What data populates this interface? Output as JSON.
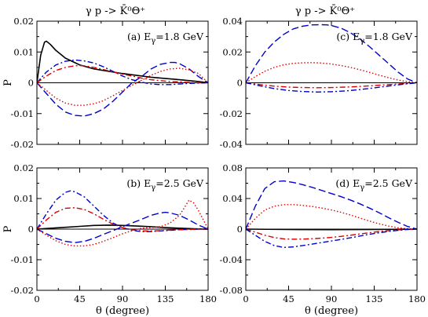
{
  "figure": {
    "reaction_left": "γ p -> K̄⁰Θ⁺",
    "reaction_right": "γ p -> K̄⁰Θ⁺"
  },
  "colors": {
    "black": "#000000",
    "blue": "#0000cc",
    "red": "#dd0000"
  },
  "chart_data": [
    {
      "type": "line",
      "panel": "a",
      "annotation": "(a) Eγ=1.8 GeV",
      "xlabel": "",
      "ylabel": "P",
      "xlim": [
        0,
        180
      ],
      "ylim": [
        -0.02,
        0.02
      ],
      "xticks": [
        0,
        45,
        90,
        135,
        180
      ],
      "xtick_labels": [
        "",
        "",
        "",
        "",
        ""
      ],
      "yticks": [
        -0.02,
        -0.01,
        0,
        0.01,
        0.02
      ],
      "ytick_labels": [
        "-0.02",
        "-0.01",
        "0",
        "0.01",
        "0.02"
      ],
      "grid": false,
      "legend": "none",
      "zero_line": true,
      "series": [
        {
          "style": "solid",
          "color": "black",
          "x": [
            0,
            4,
            8,
            10,
            14,
            20,
            30,
            45,
            60,
            90,
            120,
            150,
            170,
            180
          ],
          "y": [
            0,
            0.009,
            0.0132,
            0.0135,
            0.0125,
            0.0105,
            0.008,
            0.0058,
            0.0045,
            0.003,
            0.0018,
            0.001,
            0.0004,
            0
          ]
        },
        {
          "style": "dashed",
          "color": "blue",
          "x": [
            0,
            10,
            20,
            30,
            40,
            50,
            60,
            70,
            80,
            90,
            100,
            110,
            120,
            130,
            140,
            145,
            150,
            160,
            170,
            180
          ],
          "y": [
            0,
            -0.0035,
            -0.007,
            -0.0095,
            -0.0106,
            -0.0108,
            -0.01,
            -0.0085,
            -0.006,
            -0.003,
            0,
            0.002,
            0.0045,
            0.006,
            0.0066,
            0.0066,
            0.0062,
            0.0045,
            0.002,
            0
          ]
        },
        {
          "style": "dash-dot",
          "color": "blue",
          "x": [
            0,
            10,
            20,
            30,
            40,
            50,
            60,
            70,
            80,
            90,
            100,
            110,
            120,
            130,
            140,
            150,
            160,
            170,
            180
          ],
          "y": [
            0,
            0.0035,
            0.0058,
            0.007,
            0.0074,
            0.0071,
            0.0064,
            0.0052,
            0.0037,
            0.0022,
            0.001,
            0.0002,
            -0.0004,
            -0.0006,
            -0.0006,
            -0.0004,
            -0.0002,
            -0.0001,
            0
          ]
        },
        {
          "style": "dash-dot",
          "color": "red",
          "x": [
            0,
            10,
            20,
            30,
            40,
            45,
            50,
            60,
            70,
            80,
            90,
            100,
            110,
            120,
            130,
            140,
            150,
            160,
            170,
            180
          ],
          "y": [
            0,
            0.0022,
            0.004,
            0.005,
            0.0055,
            0.0056,
            0.0055,
            0.005,
            0.0043,
            0.0035,
            0.0028,
            0.0022,
            0.0015,
            0.001,
            0.0007,
            0.0004,
            0.0003,
            0.0001,
            0,
            0
          ]
        },
        {
          "style": "dotted",
          "color": "red",
          "x": [
            0,
            10,
            20,
            30,
            40,
            50,
            60,
            70,
            80,
            90,
            100,
            110,
            120,
            130,
            140,
            150,
            160,
            170,
            180
          ],
          "y": [
            0,
            -0.0025,
            -0.005,
            -0.0066,
            -0.0073,
            -0.0073,
            -0.0068,
            -0.0058,
            -0.0042,
            -0.0025,
            -0.0008,
            0.0008,
            0.0024,
            0.0037,
            0.0045,
            0.0047,
            0.0042,
            0.003,
            0
          ]
        }
      ]
    },
    {
      "type": "line",
      "panel": "c",
      "annotation": "(c) Eγ=1.8 GeV",
      "xlabel": "",
      "ylabel": "",
      "xlim": [
        0,
        180
      ],
      "ylim": [
        -0.04,
        0.04
      ],
      "xticks": [
        0,
        45,
        90,
        135,
        180
      ],
      "xtick_labels": [
        "",
        "",
        "",
        "",
        ""
      ],
      "yticks": [
        -0.04,
        -0.02,
        0,
        0.02,
        0.04
      ],
      "ytick_labels": [
        "-0.04",
        "-0.02",
        "0",
        "0.02",
        "0.04"
      ],
      "grid": false,
      "legend": "none",
      "zero_line": true,
      "series": [
        {
          "style": "dashed",
          "color": "blue",
          "x": [
            0,
            10,
            20,
            30,
            40,
            50,
            60,
            70,
            80,
            85,
            90,
            100,
            110,
            120,
            130,
            140,
            150,
            160,
            170,
            180
          ],
          "y": [
            0,
            0.011,
            0.02,
            0.0265,
            0.0315,
            0.035,
            0.0368,
            0.0376,
            0.0377,
            0.0376,
            0.0372,
            0.0355,
            0.0325,
            0.0285,
            0.0235,
            0.018,
            0.0125,
            0.007,
            0.0025,
            0
          ]
        },
        {
          "style": "dotted",
          "color": "red",
          "x": [
            0,
            10,
            20,
            30,
            40,
            50,
            60,
            70,
            80,
            90,
            100,
            110,
            120,
            130,
            140,
            150,
            160,
            170,
            180
          ],
          "y": [
            0,
            0.004,
            0.0075,
            0.01,
            0.0117,
            0.0126,
            0.013,
            0.0131,
            0.0128,
            0.0122,
            0.0112,
            0.01,
            0.0085,
            0.0068,
            0.005,
            0.0033,
            0.0018,
            0.0007,
            0
          ]
        },
        {
          "style": "dash-dot",
          "color": "red",
          "x": [
            0,
            15,
            30,
            45,
            60,
            75,
            90,
            105,
            120,
            135,
            150,
            165,
            180
          ],
          "y": [
            0,
            -0.0012,
            -0.0022,
            -0.0028,
            -0.0031,
            -0.0032,
            -0.0031,
            -0.0028,
            -0.0024,
            -0.0018,
            -0.0012,
            -0.0006,
            0
          ]
        },
        {
          "style": "dash-dot",
          "color": "blue",
          "x": [
            0,
            15,
            30,
            45,
            60,
            75,
            90,
            105,
            120,
            135,
            150,
            165,
            180
          ],
          "y": [
            0,
            -0.002,
            -0.0038,
            -0.005,
            -0.0057,
            -0.006,
            -0.0058,
            -0.0053,
            -0.0044,
            -0.0033,
            -0.0021,
            -0.001,
            0
          ]
        }
      ]
    },
    {
      "type": "line",
      "panel": "b",
      "annotation": "(b) Eγ=2.5 GeV",
      "xlabel": "θ (degree)",
      "ylabel": "P",
      "xlim": [
        0,
        180
      ],
      "ylim": [
        -0.02,
        0.02
      ],
      "xticks": [
        0,
        45,
        90,
        135,
        180
      ],
      "xtick_labels": [
        "0",
        "45",
        "90",
        "135",
        "180"
      ],
      "yticks": [
        -0.02,
        -0.01,
        0,
        0.01,
        0.02
      ],
      "ytick_labels": [
        "-0.02",
        "-0.01",
        "0",
        "0.01",
        "0.02"
      ],
      "grid": false,
      "legend": "none",
      "zero_line": true,
      "series": [
        {
          "style": "solid",
          "color": "black",
          "x": [
            0,
            15,
            30,
            45,
            60,
            75,
            90,
            105,
            120,
            135,
            150,
            165,
            180
          ],
          "y": [
            0,
            0.0003,
            0.0006,
            0.0009,
            0.0012,
            0.0013,
            0.0012,
            0.001,
            0.0008,
            0.0005,
            0.0003,
            0.0001,
            0
          ]
        },
        {
          "style": "dash-dot",
          "color": "blue",
          "x": [
            0,
            10,
            20,
            30,
            35,
            40,
            50,
            60,
            70,
            80,
            90,
            100,
            110,
            120,
            130,
            140,
            150,
            160,
            170,
            180
          ],
          "y": [
            0,
            0.005,
            0.0095,
            0.012,
            0.0125,
            0.0122,
            0.0105,
            0.0075,
            0.0045,
            0.002,
            0.0005,
            -0.0004,
            -0.0008,
            -0.0008,
            -0.0006,
            -0.0004,
            -0.0002,
            -0.0001,
            0,
            0
          ]
        },
        {
          "style": "dash-dot",
          "color": "red",
          "x": [
            0,
            10,
            20,
            30,
            40,
            50,
            60,
            70,
            80,
            90,
            100,
            110,
            120,
            130,
            140,
            150,
            160,
            170,
            180
          ],
          "y": [
            0,
            0.003,
            0.0055,
            0.0068,
            0.007,
            0.0064,
            0.005,
            0.0032,
            0.0016,
            0.0005,
            -0.0002,
            -0.0006,
            -0.0006,
            -0.0005,
            -0.0003,
            -0.0002,
            -0.0001,
            0,
            0
          ]
        },
        {
          "style": "dashed",
          "color": "blue",
          "x": [
            0,
            10,
            20,
            30,
            40,
            50,
            60,
            70,
            80,
            90,
            100,
            110,
            120,
            130,
            135,
            140,
            150,
            160,
            170,
            180
          ],
          "y": [
            0,
            -0.0015,
            -0.003,
            -0.004,
            -0.0044,
            -0.004,
            -0.003,
            -0.0017,
            -0.0005,
            0.0008,
            0.002,
            0.0032,
            0.0045,
            0.0053,
            0.0055,
            0.0053,
            0.0045,
            0.003,
            0.0013,
            0
          ]
        },
        {
          "style": "dotted",
          "color": "red",
          "x": [
            0,
            10,
            20,
            30,
            40,
            50,
            60,
            70,
            80,
            90,
            100,
            110,
            120,
            130,
            140,
            150,
            155,
            160,
            165,
            170,
            175,
            180
          ],
          "y": [
            0,
            -0.002,
            -0.0038,
            -0.005,
            -0.0055,
            -0.0055,
            -0.005,
            -0.004,
            -0.0028,
            -0.0015,
            -0.0005,
            0.0003,
            0.0005,
            0.0008,
            0.002,
            0.0045,
            0.007,
            0.0095,
            0.0085,
            0.006,
            0.003,
            0
          ]
        }
      ]
    },
    {
      "type": "line",
      "panel": "d",
      "annotation": "(d) Eγ=2.5 GeV",
      "xlabel": "θ (degree)",
      "ylabel": "",
      "xlim": [
        0,
        180
      ],
      "ylim": [
        -0.08,
        0.08
      ],
      "xticks": [
        0,
        45,
        90,
        135,
        180
      ],
      "xtick_labels": [
        "0",
        "45",
        "90",
        "135",
        "180"
      ],
      "yticks": [
        -0.08,
        -0.04,
        0,
        0.04,
        0.08
      ],
      "ytick_labels": [
        "-0.08",
        "-0.04",
        "0",
        "0.04",
        "0.08"
      ],
      "grid": false,
      "legend": "none",
      "zero_line": true,
      "series": [
        {
          "style": "dashed",
          "color": "blue",
          "x": [
            0,
            10,
            20,
            30,
            40,
            50,
            60,
            70,
            80,
            90,
            100,
            110,
            120,
            130,
            140,
            150,
            160,
            170,
            180
          ],
          "y": [
            0,
            0.03,
            0.053,
            0.062,
            0.063,
            0.061,
            0.058,
            0.0545,
            0.0505,
            0.0465,
            0.0425,
            0.038,
            0.033,
            0.0275,
            0.0215,
            0.015,
            0.009,
            0.0035,
            0
          ]
        },
        {
          "style": "dotted",
          "color": "red",
          "x": [
            0,
            10,
            20,
            30,
            40,
            50,
            60,
            70,
            80,
            90,
            100,
            110,
            120,
            130,
            140,
            150,
            160,
            170,
            180
          ],
          "y": [
            0,
            0.014,
            0.025,
            0.03,
            0.032,
            0.032,
            0.031,
            0.0295,
            0.0275,
            0.025,
            0.022,
            0.0185,
            0.0145,
            0.0105,
            0.007,
            0.004,
            0.0018,
            0.0005,
            0
          ]
        },
        {
          "style": "solid",
          "color": "black",
          "x": [
            0,
            45,
            90,
            135,
            180
          ],
          "y": [
            0,
            -0.0005,
            -0.0007,
            -0.0005,
            0
          ]
        },
        {
          "style": "dash-dot",
          "color": "red",
          "x": [
            0,
            10,
            20,
            30,
            40,
            50,
            60,
            70,
            80,
            90,
            100,
            110,
            120,
            130,
            140,
            150,
            160,
            170,
            180
          ],
          "y": [
            0,
            -0.004,
            -0.008,
            -0.011,
            -0.0128,
            -0.0132,
            -0.013,
            -0.0125,
            -0.0118,
            -0.0108,
            -0.0095,
            -0.008,
            -0.0063,
            -0.0047,
            -0.0032,
            -0.002,
            -0.001,
            -0.0003,
            0
          ]
        },
        {
          "style": "dash-dot",
          "color": "blue",
          "x": [
            0,
            10,
            20,
            30,
            40,
            50,
            60,
            70,
            80,
            90,
            100,
            110,
            120,
            130,
            140,
            150,
            160,
            170,
            180
          ],
          "y": [
            0,
            -0.008,
            -0.016,
            -0.0215,
            -0.024,
            -0.0232,
            -0.0215,
            -0.0195,
            -0.0175,
            -0.0155,
            -0.0135,
            -0.0113,
            -0.009,
            -0.0068,
            -0.0048,
            -0.003,
            -0.0016,
            -0.0005,
            0
          ]
        }
      ]
    }
  ]
}
